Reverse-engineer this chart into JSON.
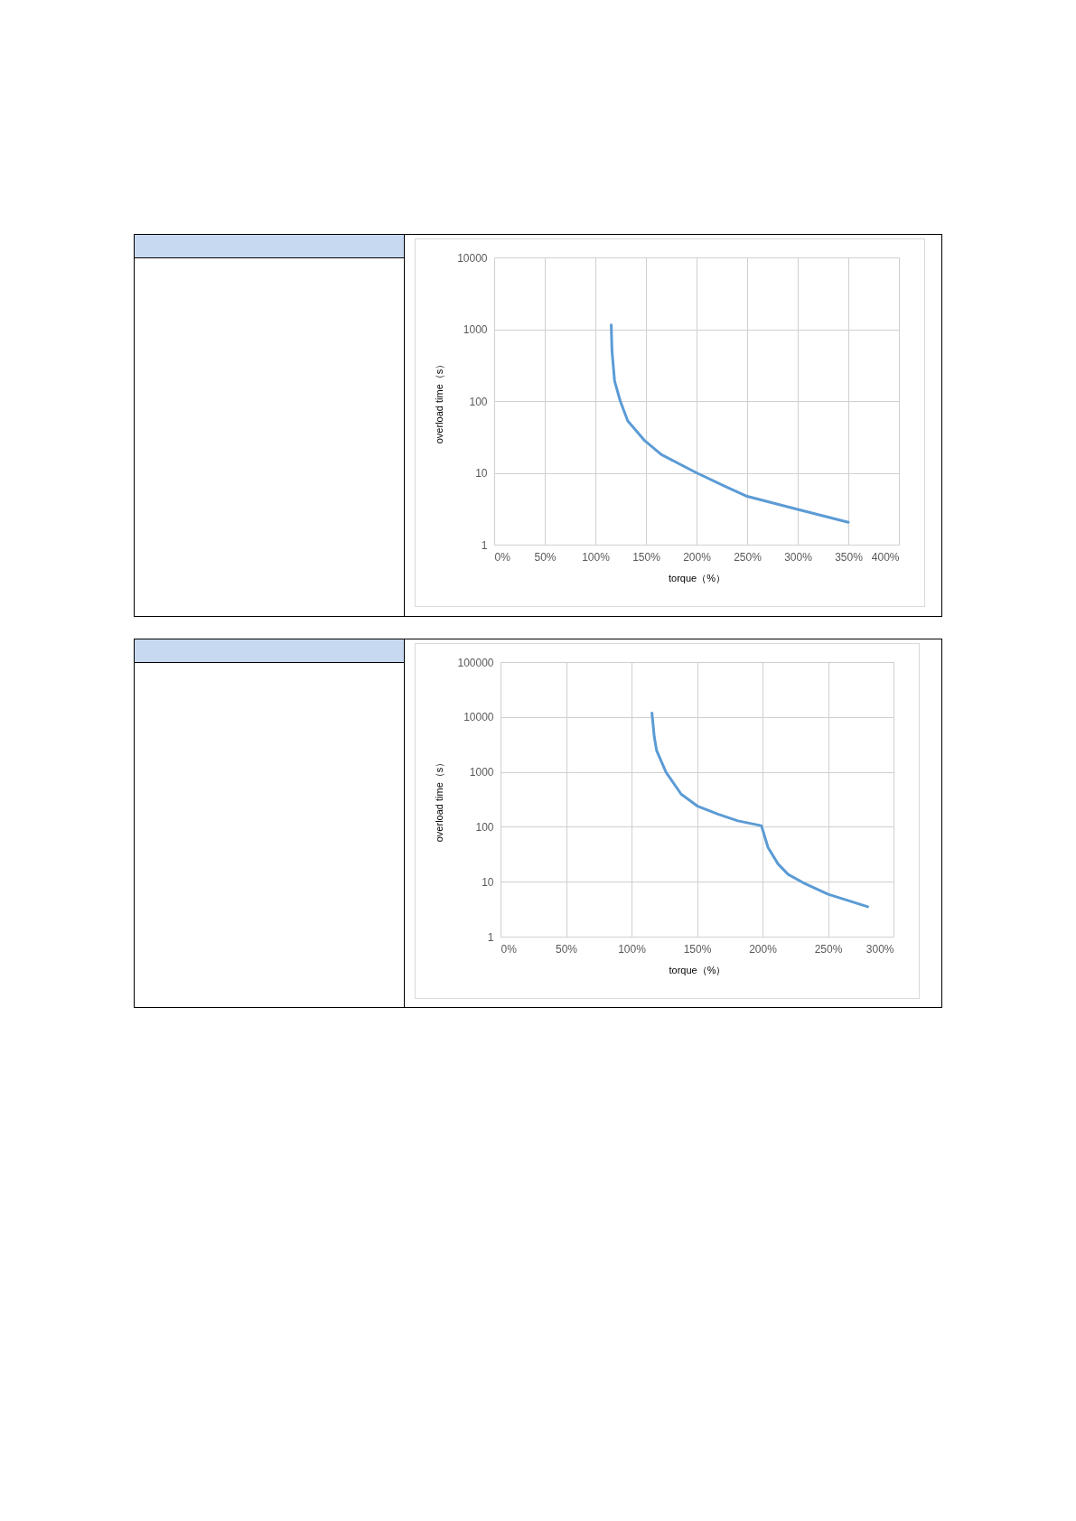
{
  "chart_data": [
    {
      "type": "line",
      "xlabel": "torque（%）",
      "ylabel": "overload time（s）",
      "log": "y",
      "grid": true,
      "marker": "none",
      "line_style": "solid",
      "x": [
        115.7,
        116.4,
        119,
        124.6,
        132,
        148.8,
        165,
        200,
        228,
        250,
        300,
        350
      ],
      "series": [
        {
          "color": "#5b9bd5",
          "values": [
            1150,
            500,
            190,
            100,
            53,
            28,
            18,
            10,
            6.5,
            4.7,
            3.1,
            2.05
          ]
        }
      ],
      "xlim": [
        0,
        400
      ],
      "xticks": [
        {
          "value": 0,
          "label": "0%"
        },
        {
          "value": 50,
          "label": "50%"
        },
        {
          "value": 100,
          "label": "100%"
        },
        {
          "value": 150,
          "label": "150%"
        },
        {
          "value": 200,
          "label": "200%"
        },
        {
          "value": 250,
          "label": "250%"
        },
        {
          "value": 300,
          "label": "300%"
        },
        {
          "value": 350,
          "label": "350%"
        },
        {
          "value": 400,
          "label": "400%"
        }
      ],
      "ylim": [
        1,
        10000
      ],
      "yticks": [
        1,
        10,
        100,
        1000,
        10000
      ]
    },
    {
      "type": "line",
      "xlabel": "torque（%）",
      "ylabel": "overload time（s）",
      "log": "y",
      "grid": true,
      "marker": "none",
      "line_style": "solid",
      "x": [
        115.6,
        117.4,
        119.2,
        126.4,
        137.9,
        150.1,
        166,
        181.3,
        199.1,
        200.4,
        204.2,
        211.9,
        219.6,
        231,
        250.2,
        280.3
      ],
      "series": [
        {
          "color": "#5b9bd5",
          "values": [
            11800,
            4300,
            2430,
            980,
            393,
            240,
            170,
            128,
            105,
            84,
            42,
            21,
            13.6,
            9.6,
            5.9,
            3.5
          ]
        }
      ],
      "xlim": [
        0,
        300
      ],
      "xticks": [
        {
          "value": 0,
          "label": "0%"
        },
        {
          "value": 50,
          "label": "50%"
        },
        {
          "value": 100,
          "label": "100%"
        },
        {
          "value": 150,
          "label": "150%"
        },
        {
          "value": 200,
          "label": "200%"
        },
        {
          "value": 250,
          "label": "250%"
        },
        {
          "value": 300,
          "label": "300%"
        }
      ],
      "ylim": [
        1,
        100000
      ],
      "yticks": [
        1,
        10,
        100,
        1000,
        10000,
        100000
      ]
    }
  ]
}
